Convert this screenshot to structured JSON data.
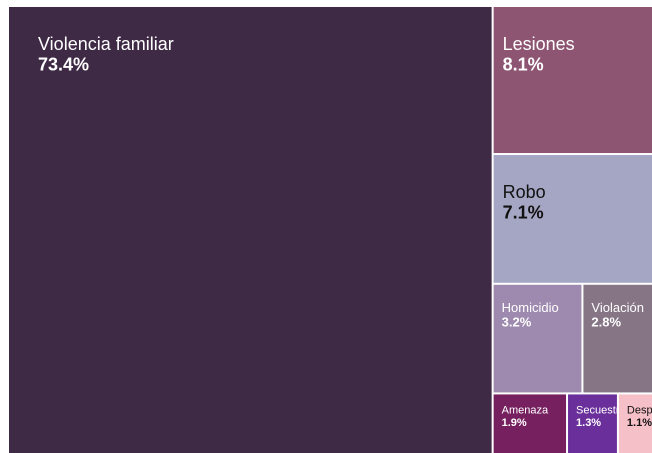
{
  "chart_data": {
    "type": "treemap",
    "categories": [
      "Violencia familiar",
      "Lesiones",
      "Robo",
      "Homicidio",
      "Violación",
      "Amenaza",
      "Secuestro",
      "Despojo"
    ],
    "values": [
      73.4,
      8.1,
      7.1,
      3.2,
      2.8,
      1.9,
      1.3,
      1.1
    ],
    "value_labels": [
      "73.4%",
      "8.1%",
      "7.1%",
      "3.2%",
      "2.8%",
      "1.9%",
      "1.3%",
      "1.1%"
    ],
    "colors": [
      "#3f2a45",
      "#8e5572",
      "#a4a6c4",
      "#9e8aae",
      "#857585",
      "#762060",
      "#6a2f9a",
      "#f5c0c8"
    ]
  }
}
